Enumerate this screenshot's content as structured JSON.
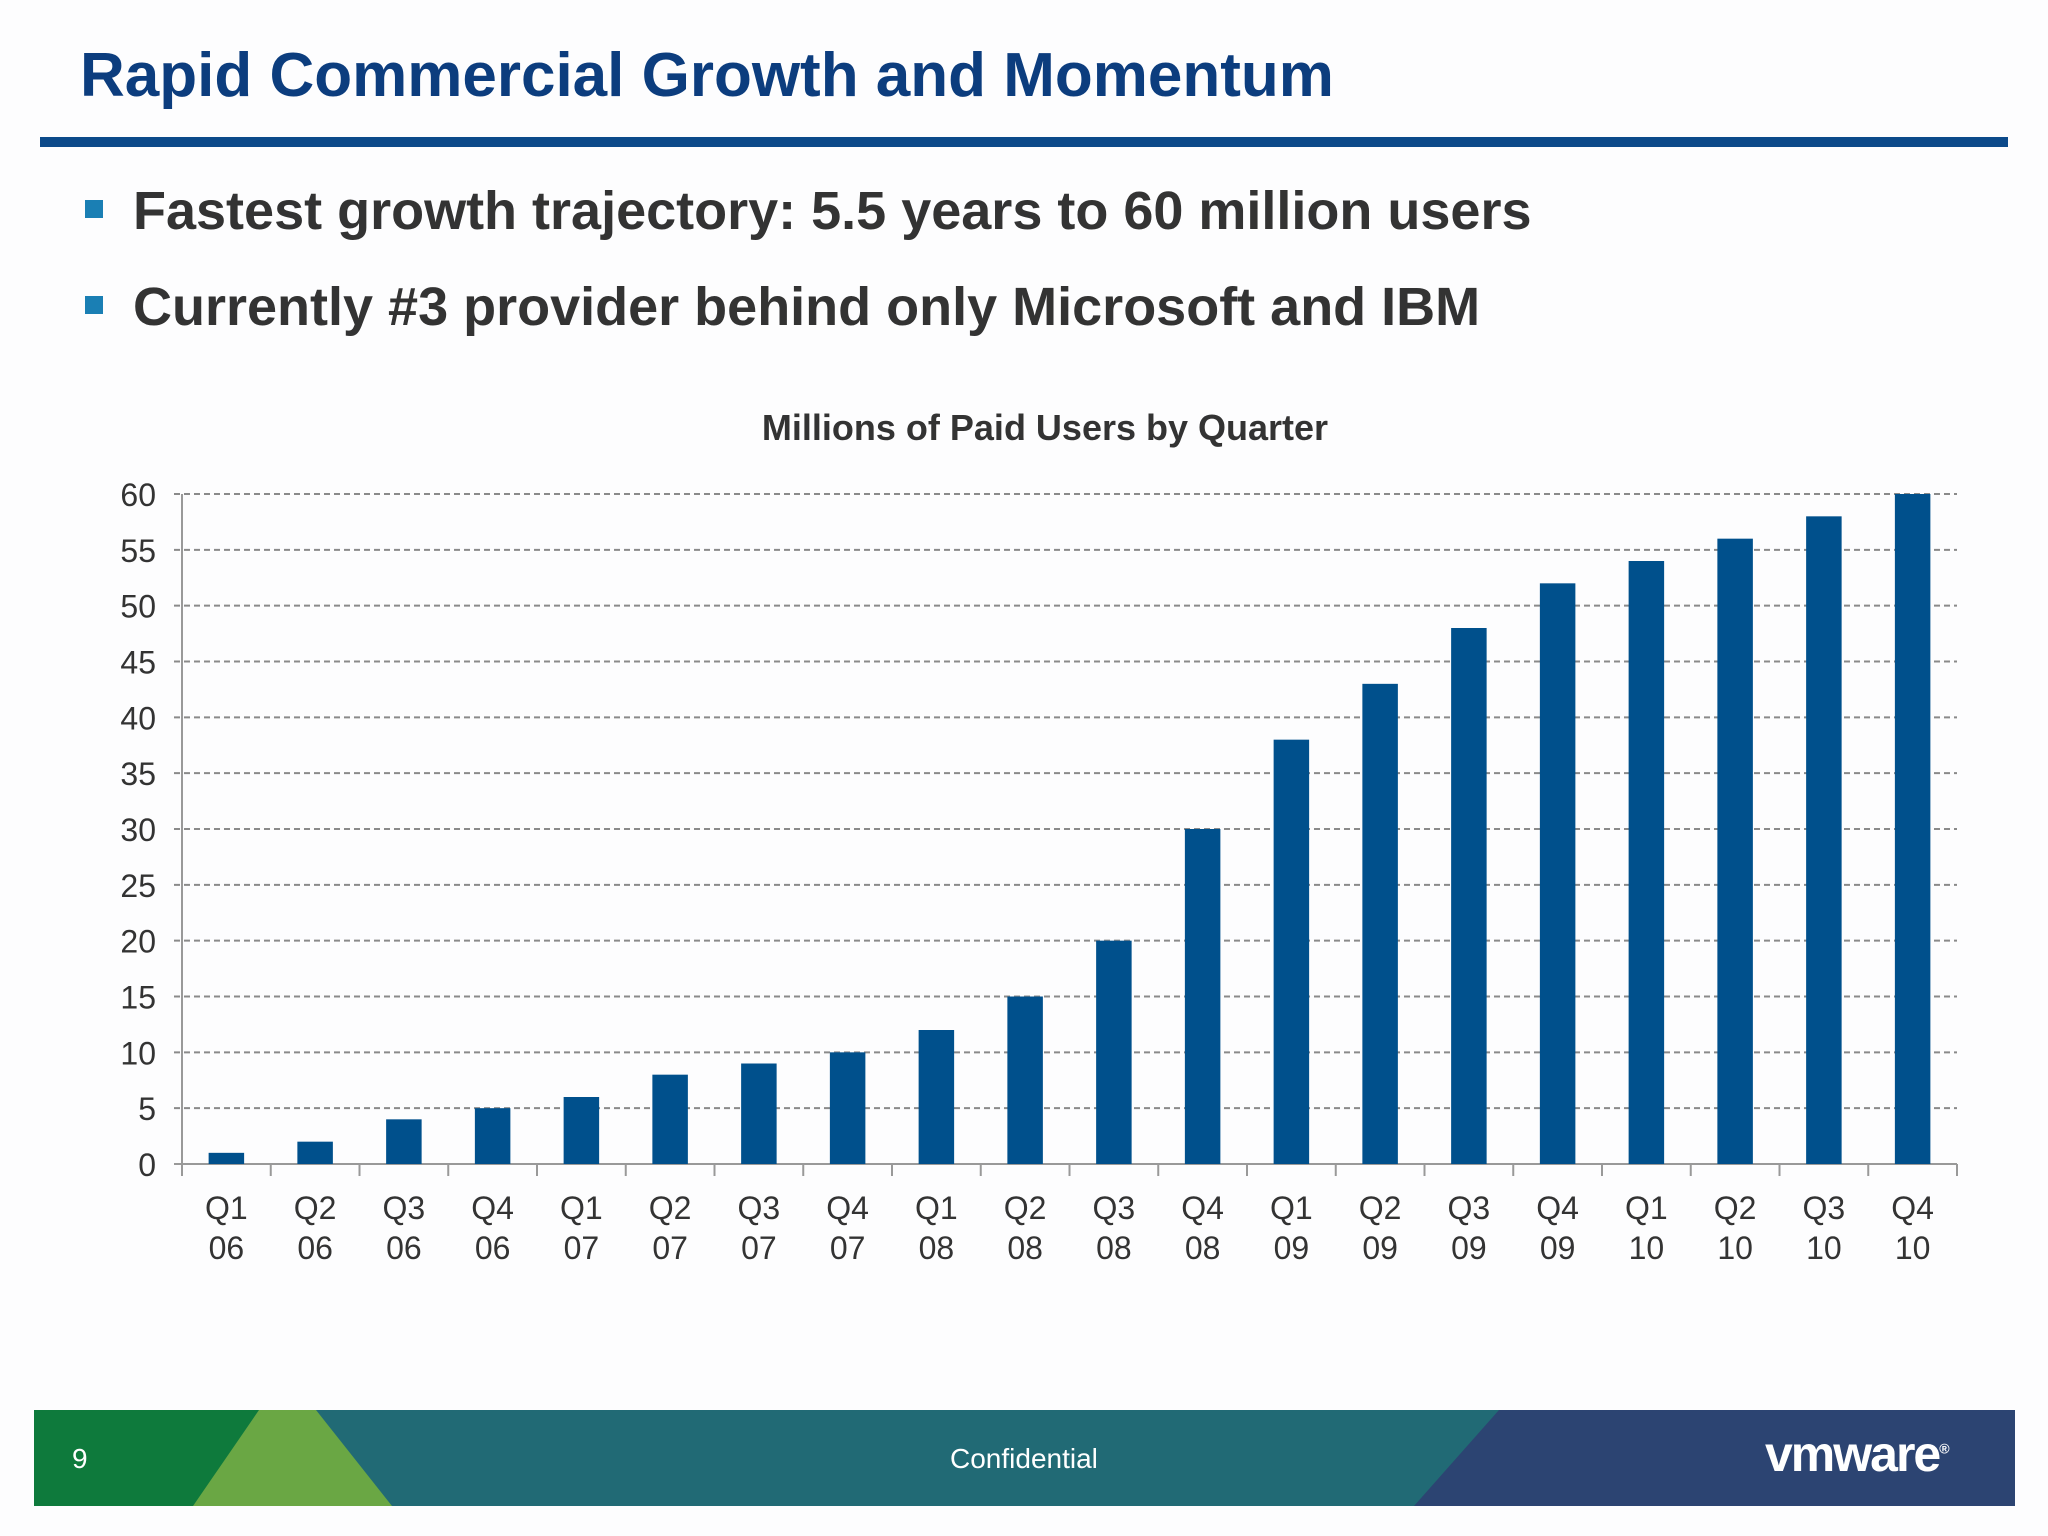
{
  "header": {
    "title": "Rapid Commercial Growth and Momentum"
  },
  "bullets": [
    "Fastest growth trajectory: 5.5 years to 60 million users",
    "Currently #3 provider behind only Microsoft and IBM"
  ],
  "chart_data": {
    "type": "bar",
    "title": "Millions of Paid Users by Quarter",
    "xlabel": "",
    "ylabel": "",
    "categories": [
      "Q1 06",
      "Q2 06",
      "Q3 06",
      "Q4 06",
      "Q1 07",
      "Q2 07",
      "Q3 07",
      "Q4 07",
      "Q1 08",
      "Q2 08",
      "Q3 08",
      "Q4 08",
      "Q1 09",
      "Q2 09",
      "Q3 09",
      "Q4 09",
      "Q1 10",
      "Q2 10",
      "Q3 10",
      "Q4 10"
    ],
    "values": [
      1,
      2,
      4,
      5,
      6,
      8,
      9,
      10,
      12,
      15,
      20,
      30,
      38,
      43,
      48,
      52,
      54,
      56,
      58,
      60
    ],
    "ylim": [
      0,
      60
    ],
    "yticks": [
      0,
      5,
      10,
      15,
      20,
      25,
      30,
      35,
      40,
      45,
      50,
      55,
      60
    ],
    "grid": true,
    "bar_color": "#00508c"
  },
  "footer": {
    "page": "9",
    "label": "Confidential",
    "logo": "vmware"
  },
  "colors": {
    "title": "#0c3d7e",
    "rule": "#0c4a8a",
    "bullet": "#1a7fb4",
    "footer_green": "#0e7a3c",
    "footer_light_green": "#6aa744",
    "footer_teal": "#216a75",
    "footer_navy": "#2c4472"
  }
}
